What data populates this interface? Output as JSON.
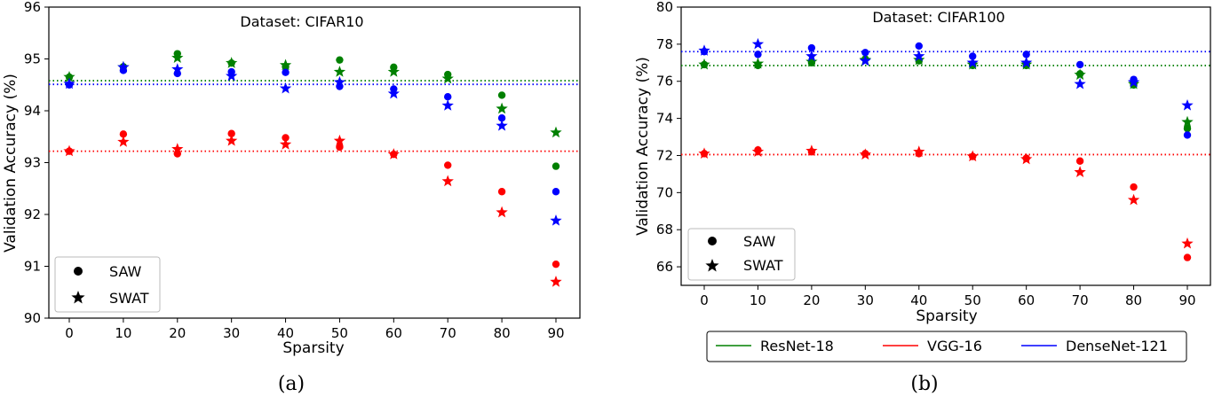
{
  "colors": {
    "ResNet-18": "#008000",
    "VGG-16": "#ff0000",
    "DenseNet-121": "#0000ff"
  },
  "chart_data": [
    {
      "type": "scatter",
      "title": "Dataset: CIFAR10",
      "caption": "(a)",
      "xlabel": "Sparsity",
      "ylabel": "Validation Accuracy (%)",
      "x": [
        0,
        10,
        20,
        30,
        40,
        50,
        60,
        70,
        80,
        90
      ],
      "xticks": [
        "0",
        "10",
        "20",
        "30",
        "40",
        "50",
        "60",
        "70",
        "80",
        "90"
      ],
      "ylim": [
        90,
        96
      ],
      "yticks": [
        90,
        91,
        92,
        93,
        94,
        95,
        96
      ],
      "legend": {
        "placement": "lower-left",
        "entries": [
          "SAW",
          "SWAT"
        ]
      },
      "series": [
        {
          "name": "ResNet-18",
          "method": "SAW",
          "values": [
            94.65,
            94.85,
            95.1,
            94.92,
            94.85,
            94.98,
            94.84,
            94.7,
            94.3,
            92.93
          ]
        },
        {
          "name": "ResNet-18",
          "method": "SWAT",
          "values": [
            94.65,
            94.84,
            95.02,
            94.92,
            94.88,
            94.75,
            94.75,
            94.62,
            94.04,
            93.58
          ]
        },
        {
          "name": "VGG-16",
          "method": "SAW",
          "values": [
            93.22,
            93.55,
            93.17,
            93.56,
            93.48,
            93.3,
            93.16,
            92.95,
            92.44,
            91.04
          ]
        },
        {
          "name": "VGG-16",
          "method": "SWAT",
          "values": [
            93.22,
            93.4,
            93.26,
            93.42,
            93.35,
            93.42,
            93.16,
            92.64,
            92.04,
            90.7
          ]
        },
        {
          "name": "DenseNet-121",
          "method": "SAW",
          "values": [
            94.5,
            94.78,
            94.72,
            94.75,
            94.74,
            94.47,
            94.42,
            94.27,
            93.86,
            92.44
          ]
        },
        {
          "name": "DenseNet-121",
          "method": "SWAT",
          "values": [
            94.52,
            94.84,
            94.8,
            94.67,
            94.43,
            94.55,
            94.33,
            94.1,
            93.71,
            91.88
          ]
        }
      ],
      "baselines": [
        {
          "name": "ResNet-18",
          "value": 94.58
        },
        {
          "name": "VGG-16",
          "value": 93.22
        },
        {
          "name": "DenseNet-121",
          "value": 94.51
        }
      ]
    },
    {
      "type": "scatter",
      "title": "Dataset: CIFAR100",
      "caption": "(b)",
      "xlabel": "Sparsity",
      "ylabel": "Validation Accuracy (%)",
      "x": [
        0,
        10,
        20,
        30,
        40,
        50,
        60,
        70,
        80,
        90
      ],
      "xticks": [
        "0",
        "10",
        "20",
        "30",
        "40",
        "50",
        "60",
        "70",
        "80",
        "90"
      ],
      "ylim": [
        65,
        80
      ],
      "yticks": [
        66,
        68,
        70,
        72,
        74,
        76,
        78,
        80
      ],
      "legend": {
        "placement": "lower-left",
        "entries": [
          "SAW",
          "SWAT"
        ]
      },
      "series_legend": {
        "placement": "below",
        "entries": [
          "ResNet-18",
          "VGG-16",
          "DenseNet-121"
        ]
      },
      "series": [
        {
          "name": "ResNet-18",
          "method": "SAW",
          "values": [
            76.9,
            76.85,
            77.0,
            77.2,
            77.1,
            76.85,
            76.85,
            76.4,
            75.8,
            73.45
          ]
        },
        {
          "name": "ResNet-18",
          "method": "SWAT",
          "values": [
            76.9,
            76.95,
            77.05,
            77.15,
            77.15,
            76.9,
            76.9,
            76.35,
            75.85,
            73.8
          ]
        },
        {
          "name": "VGG-16",
          "method": "SAW",
          "values": [
            72.1,
            72.3,
            72.2,
            72.1,
            72.1,
            71.95,
            71.85,
            71.7,
            70.3,
            66.5
          ]
        },
        {
          "name": "VGG-16",
          "method": "SWAT",
          "values": [
            72.1,
            72.2,
            72.25,
            72.05,
            72.2,
            71.95,
            71.8,
            71.1,
            69.6,
            67.25
          ]
        },
        {
          "name": "DenseNet-121",
          "method": "SAW",
          "values": [
            77.6,
            77.45,
            77.8,
            77.55,
            77.9,
            77.35,
            77.45,
            76.9,
            76.1,
            73.1
          ]
        },
        {
          "name": "DenseNet-121",
          "method": "SWAT",
          "values": [
            77.65,
            78.0,
            77.35,
            77.1,
            77.35,
            77.0,
            77.0,
            75.85,
            75.95,
            74.7
          ]
        }
      ],
      "baselines": [
        {
          "name": "ResNet-18",
          "value": 76.85
        },
        {
          "name": "VGG-16",
          "value": 72.05
        },
        {
          "name": "DenseNet-121",
          "value": 77.6
        }
      ]
    }
  ]
}
